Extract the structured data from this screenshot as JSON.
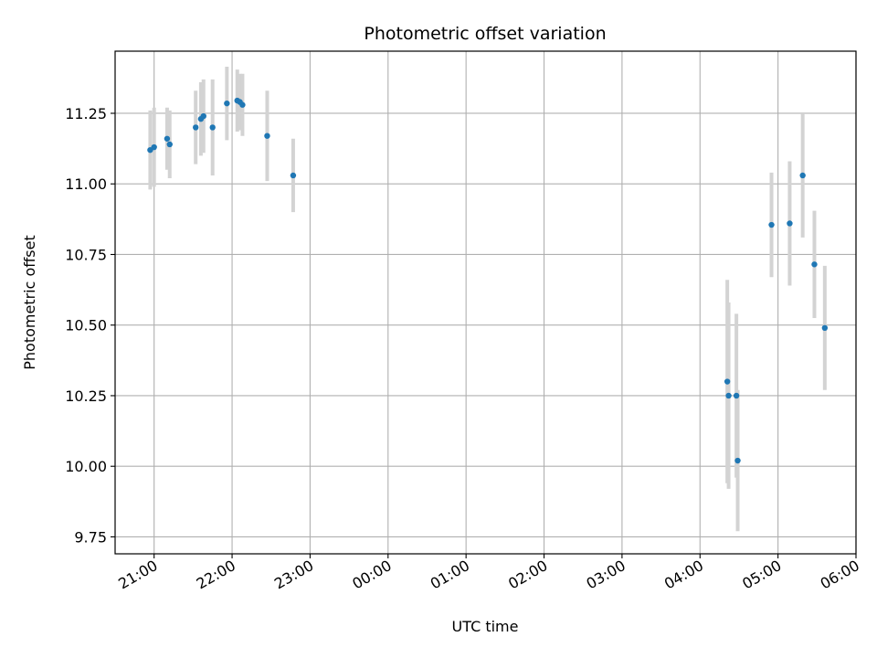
{
  "chart_data": {
    "type": "scatter",
    "title": "Photometric offset variation",
    "xlabel": "UTC time",
    "ylabel": "Photometric offset",
    "grid": true,
    "xlim": [
      "20:30",
      "06:00"
    ],
    "ylim": [
      9.69,
      11.47
    ],
    "x_ticks": [
      "21:00",
      "22:00",
      "23:00",
      "00:00",
      "01:00",
      "02:00",
      "03:00",
      "04:00",
      "05:00",
      "06:00"
    ],
    "y_ticks": [
      "9.75",
      "10.00",
      "10.25",
      "10.50",
      "10.75",
      "11.00",
      "11.25"
    ],
    "colors": {
      "points": "#1f77b4",
      "error_bars": "#d3d3d3",
      "grid": "#b0b0b0"
    },
    "series": [
      {
        "points": [
          {
            "x": "20:57",
            "y": 11.12,
            "err": 0.14
          },
          {
            "x": "21:00",
            "y": 11.13,
            "err": 0.14
          },
          {
            "x": "21:10",
            "y": 11.16,
            "err": 0.11
          },
          {
            "x": "21:12",
            "y": 11.14,
            "err": 0.12
          },
          {
            "x": "21:32",
            "y": 11.2,
            "err": 0.13
          },
          {
            "x": "21:36",
            "y": 11.23,
            "err": 0.13
          },
          {
            "x": "21:38",
            "y": 11.24,
            "err": 0.13
          },
          {
            "x": "21:45",
            "y": 11.2,
            "err": 0.17
          },
          {
            "x": "21:56",
            "y": 11.285,
            "err": 0.13
          },
          {
            "x": "22:04",
            "y": 11.295,
            "err": 0.11
          },
          {
            "x": "22:06",
            "y": 11.29,
            "err": 0.1
          },
          {
            "x": "22:08",
            "y": 11.28,
            "err": 0.11
          },
          {
            "x": "22:27",
            "y": 11.17,
            "err": 0.16
          },
          {
            "x": "22:47",
            "y": 11.03,
            "err": 0.13
          },
          {
            "x": "04:21",
            "y": 10.3,
            "err": 0.36
          },
          {
            "x": "04:22",
            "y": 10.25,
            "err": 0.33
          },
          {
            "x": "04:28",
            "y": 10.25,
            "err": 0.29
          },
          {
            "x": "04:29",
            "y": 10.02,
            "err": 0.25
          },
          {
            "x": "04:55",
            "y": 10.855,
            "err": 0.185
          },
          {
            "x": "05:09",
            "y": 10.86,
            "err": 0.22
          },
          {
            "x": "05:19",
            "y": 11.03,
            "err": 0.22
          },
          {
            "x": "05:28",
            "y": 10.715,
            "err": 0.19
          },
          {
            "x": "05:36",
            "y": 10.49,
            "err": 0.22
          }
        ]
      }
    ]
  }
}
